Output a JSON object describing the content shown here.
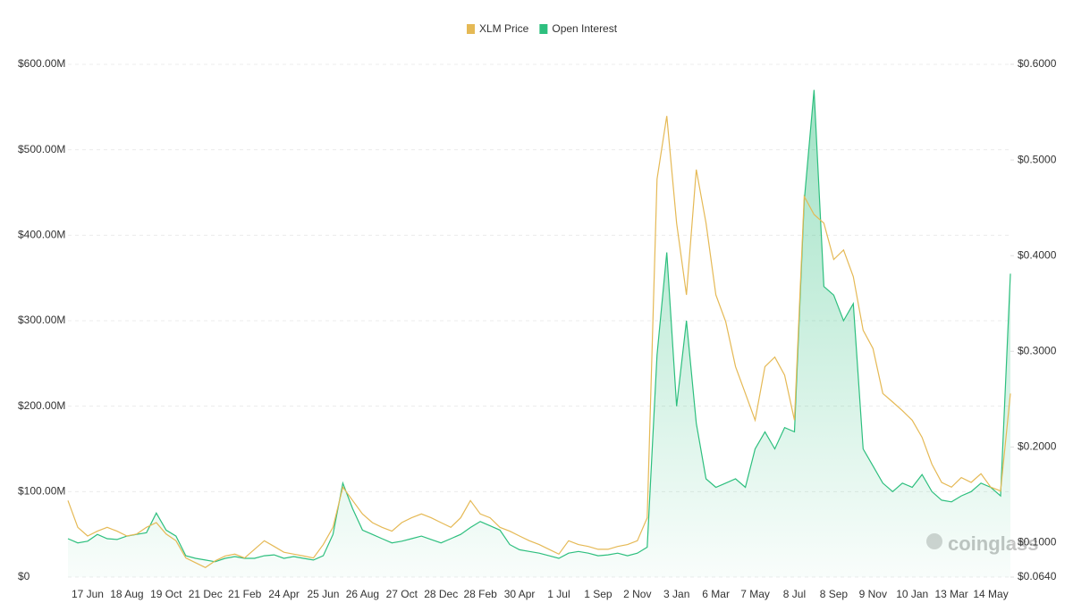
{
  "chart_data": {
    "type": "line",
    "watermark": "coinglass",
    "categories": [
      null,
      null,
      "17 Jun",
      null,
      null,
      null,
      "18 Aug",
      null,
      null,
      null,
      "19 Oct",
      null,
      null,
      null,
      "21 Dec",
      null,
      null,
      null,
      "21 Feb",
      null,
      null,
      null,
      "24 Apr",
      null,
      null,
      null,
      "25 Jun",
      null,
      null,
      null,
      "26 Aug",
      null,
      null,
      null,
      "27 Oct",
      null,
      null,
      null,
      "28 Dec",
      null,
      null,
      null,
      "28 Feb",
      null,
      null,
      null,
      "30 Apr",
      null,
      null,
      null,
      "1 Jul",
      null,
      null,
      null,
      "1 Sep",
      null,
      null,
      null,
      "2 Nov",
      null,
      null,
      null,
      "3 Jan",
      null,
      null,
      null,
      "6 Mar",
      null,
      null,
      null,
      "7 May",
      null,
      null,
      null,
      "8 Jul",
      null,
      null,
      null,
      "8 Sep",
      null,
      null,
      null,
      "9 Nov",
      null,
      null,
      null,
      "10 Jan",
      null,
      null,
      null,
      "13 Mar",
      null,
      null,
      null,
      "14 May",
      null,
      null
    ],
    "series": [
      {
        "name": "XLM Price",
        "color": "#e5b955",
        "axis": "y2",
        "values": [
          0.144,
          0.116,
          0.107,
          0.112,
          0.116,
          0.112,
          0.107,
          0.109,
          0.116,
          0.121,
          0.109,
          0.102,
          0.084,
          0.079,
          0.074,
          0.081,
          0.086,
          0.088,
          0.084,
          0.093,
          0.102,
          0.096,
          0.09,
          0.088,
          0.086,
          0.084,
          0.098,
          0.116,
          0.158,
          0.144,
          0.13,
          0.121,
          0.116,
          0.112,
          0.121,
          0.126,
          0.13,
          0.126,
          0.121,
          0.116,
          0.126,
          0.144,
          0.13,
          0.126,
          0.116,
          0.112,
          0.107,
          0.102,
          0.098,
          0.093,
          0.088,
          0.102,
          0.098,
          0.096,
          0.093,
          0.093,
          0.096,
          0.098,
          0.102,
          0.126,
          0.48,
          0.546,
          0.434,
          0.359,
          0.49,
          0.434,
          0.359,
          0.331,
          0.284,
          0.256,
          0.228,
          0.284,
          0.294,
          0.275,
          0.228,
          0.462,
          0.443,
          0.434,
          0.396,
          0.406,
          0.378,
          0.322,
          0.303,
          0.256,
          0.247,
          0.238,
          0.228,
          0.21,
          0.182,
          0.163,
          0.158,
          0.168,
          0.163,
          0.172,
          0.158,
          0.154,
          0.256
        ]
      },
      {
        "name": "Open Interest",
        "color": "#2dbf7e",
        "values": [
          45000000,
          40000000,
          42000000,
          50000000,
          45000000,
          44000000,
          48000000,
          50000000,
          52000000,
          75000000,
          55000000,
          48000000,
          25000000,
          22000000,
          20000000,
          18000000,
          22000000,
          24000000,
          22000000,
          22000000,
          25000000,
          26000000,
          22000000,
          24000000,
          22000000,
          20000000,
          25000000,
          50000000,
          110000000,
          80000000,
          55000000,
          50000000,
          45000000,
          40000000,
          42000000,
          45000000,
          48000000,
          44000000,
          40000000,
          45000000,
          50000000,
          58000000,
          65000000,
          60000000,
          55000000,
          38000000,
          32000000,
          30000000,
          28000000,
          25000000,
          22000000,
          28000000,
          30000000,
          28000000,
          25000000,
          26000000,
          28000000,
          25000000,
          28000000,
          35000000,
          260000000,
          380000000,
          200000000,
          300000000,
          180000000,
          115000000,
          105000000,
          110000000,
          115000000,
          105000000,
          150000000,
          170000000,
          150000000,
          175000000,
          170000000,
          440000000,
          570000000,
          340000000,
          330000000,
          300000000,
          320000000,
          150000000,
          130000000,
          110000000,
          100000000,
          110000000,
          105000000,
          120000000,
          100000000,
          90000000,
          88000000,
          95000000,
          100000000,
          110000000,
          105000000,
          95000000,
          355000000
        ]
      }
    ],
    "ylim": [
      0,
      600000000
    ],
    "yticks": [
      {
        "value": 0,
        "label": "$0"
      },
      {
        "value": 100000000,
        "label": "$100.00M"
      },
      {
        "value": 200000000,
        "label": "$200.00M"
      },
      {
        "value": 300000000,
        "label": "$300.00M"
      },
      {
        "value": 400000000,
        "label": "$400.00M"
      },
      {
        "value": 500000000,
        "label": "$500.00M"
      },
      {
        "value": 600000000,
        "label": "$600.00M"
      }
    ],
    "y2lim": [
      0.064,
      0.6
    ],
    "y2ticks": [
      {
        "value": 0.064,
        "label": "$0.0640"
      },
      {
        "value": 0.1,
        "label": "$0.1000"
      },
      {
        "value": 0.2,
        "label": "$0.2000"
      },
      {
        "value": 0.3,
        "label": "$0.3000"
      },
      {
        "value": 0.4,
        "label": "$0.4000"
      },
      {
        "value": 0.5,
        "label": "$0.5000"
      },
      {
        "value": 0.6,
        "label": "$0.6000"
      }
    ],
    "grid": true,
    "legend": "top"
  }
}
